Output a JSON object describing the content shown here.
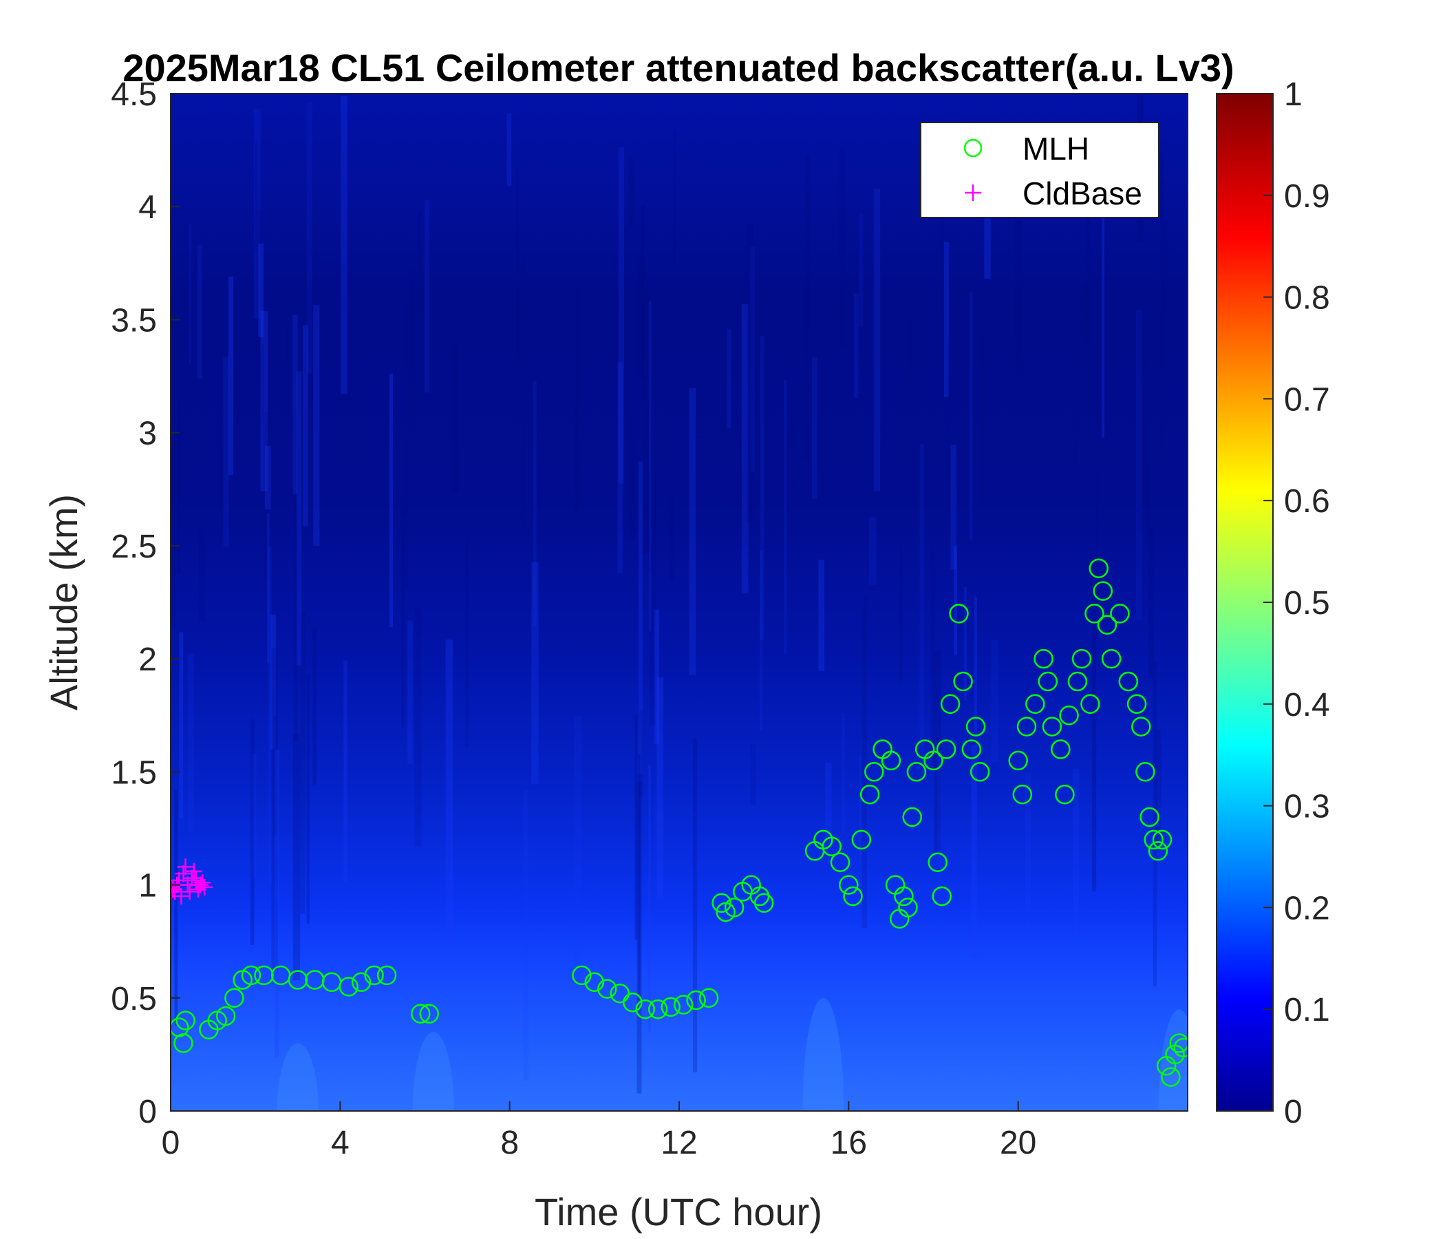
{
  "chart_data": {
    "type": "heatmap",
    "title": "2025Mar18 CL51 Ceilometer attenuated backscatter(a.u. Lv3)",
    "xlabel": "Time (UTC hour)",
    "ylabel": "Altitude (km)",
    "xlim": [
      0,
      24
    ],
    "ylim": [
      0,
      4.5
    ],
    "xticks": [
      0,
      4,
      8,
      12,
      16,
      20
    ],
    "yticks": [
      0,
      0.5,
      1,
      1.5,
      2,
      2.5,
      3,
      3.5,
      4,
      4.5
    ],
    "x_tick_labels": [
      "0",
      "4",
      "8",
      "12",
      "16",
      "20"
    ],
    "y_tick_labels": [
      "0",
      "0.5",
      "1",
      "1.5",
      "2",
      "2.5",
      "3",
      "3.5",
      "4",
      "4.5"
    ],
    "colorbar": {
      "colormap": "jet",
      "limits": [
        0,
        1
      ],
      "ticks": [
        "0",
        "0.1",
        "0.2",
        "0.3",
        "0.4",
        "0.5",
        "0.6",
        "0.7",
        "0.8",
        "0.9",
        "1"
      ]
    },
    "legend": {
      "location": "top-right",
      "entries": [
        {
          "label": "MLH",
          "marker": "circle",
          "color": "#00ff00"
        },
        {
          "label": "CldBase",
          "marker": "plus",
          "color": "#ff00ff"
        }
      ]
    },
    "backscatter_profile": {
      "description_levels": "altitude_km vs approximate normalized backscatter",
      "altitude_km": [
        0,
        0.3,
        0.6,
        0.9,
        1.2,
        1.6,
        2.0,
        2.6,
        3.5,
        4.5
      ],
      "value": [
        0.28,
        0.24,
        0.18,
        0.14,
        0.11,
        0.09,
        0.07,
        0.05,
        0.04,
        0.04
      ]
    },
    "series": [
      {
        "name": "MLH",
        "x": [
          0.2,
          0.3,
          0.35,
          0.9,
          1.1,
          1.3,
          1.5,
          1.7,
          1.9,
          2.2,
          2.6,
          3.0,
          3.4,
          3.8,
          4.2,
          4.5,
          4.8,
          5.1,
          5.9,
          6.1,
          9.7,
          10.0,
          10.3,
          10.6,
          10.9,
          11.2,
          11.5,
          11.8,
          12.1,
          12.4,
          12.7,
          13.0,
          13.1,
          13.3,
          13.5,
          13.7,
          13.9,
          14.0,
          15.2,
          15.4,
          15.6,
          15.8,
          16.0,
          16.1,
          16.3,
          16.5,
          16.6,
          16.8,
          17.0,
          17.1,
          17.2,
          17.3,
          17.4,
          17.5,
          17.6,
          17.8,
          18.0,
          18.1,
          18.2,
          18.3,
          18.4,
          18.6,
          18.7,
          18.9,
          19.0,
          19.1,
          20.0,
          20.1,
          20.2,
          20.4,
          20.6,
          20.7,
          20.8,
          21.0,
          21.1,
          21.2,
          21.4,
          21.5,
          21.7,
          21.8,
          21.9,
          22.0,
          22.1,
          22.2,
          22.4,
          22.6,
          22.8,
          22.9,
          23.0,
          23.1,
          23.2,
          23.3,
          23.4,
          23.5,
          23.6,
          23.7,
          23.8,
          23.9
        ],
        "y": [
          0.37,
          0.3,
          0.4,
          0.36,
          0.4,
          0.42,
          0.5,
          0.58,
          0.6,
          0.6,
          0.6,
          0.58,
          0.58,
          0.57,
          0.55,
          0.57,
          0.6,
          0.6,
          0.43,
          0.43,
          0.6,
          0.57,
          0.54,
          0.52,
          0.48,
          0.45,
          0.45,
          0.46,
          0.47,
          0.49,
          0.5,
          0.92,
          0.88,
          0.9,
          0.97,
          1.0,
          0.95,
          0.92,
          1.15,
          1.2,
          1.17,
          1.1,
          1.0,
          0.95,
          1.2,
          1.4,
          1.5,
          1.6,
          1.55,
          1.0,
          0.85,
          0.95,
          0.9,
          1.3,
          1.5,
          1.6,
          1.55,
          1.1,
          0.95,
          1.6,
          1.8,
          2.2,
          1.9,
          1.6,
          1.7,
          1.5,
          1.55,
          1.4,
          1.7,
          1.8,
          2.0,
          1.9,
          1.7,
          1.6,
          1.4,
          1.75,
          1.9,
          2.0,
          1.8,
          2.2,
          2.4,
          2.3,
          2.15,
          2.0,
          2.2,
          1.9,
          1.8,
          1.7,
          1.5,
          1.3,
          1.2,
          1.15,
          1.2,
          0.2,
          0.15,
          0.25,
          0.3,
          0.28
        ]
      },
      {
        "name": "CldBase",
        "x": [
          0.05,
          0.1,
          0.15,
          0.2,
          0.25,
          0.3,
          0.35,
          0.4,
          0.45,
          0.5,
          0.55,
          0.6,
          0.65,
          0.7,
          0.75,
          0.8
        ],
        "y": [
          0.98,
          0.97,
          1.0,
          1.02,
          0.95,
          1.05,
          1.08,
          1.0,
          0.97,
          1.03,
          1.06,
          1.02,
          0.98,
          1.0,
          1.01,
          0.99
        ]
      }
    ]
  }
}
